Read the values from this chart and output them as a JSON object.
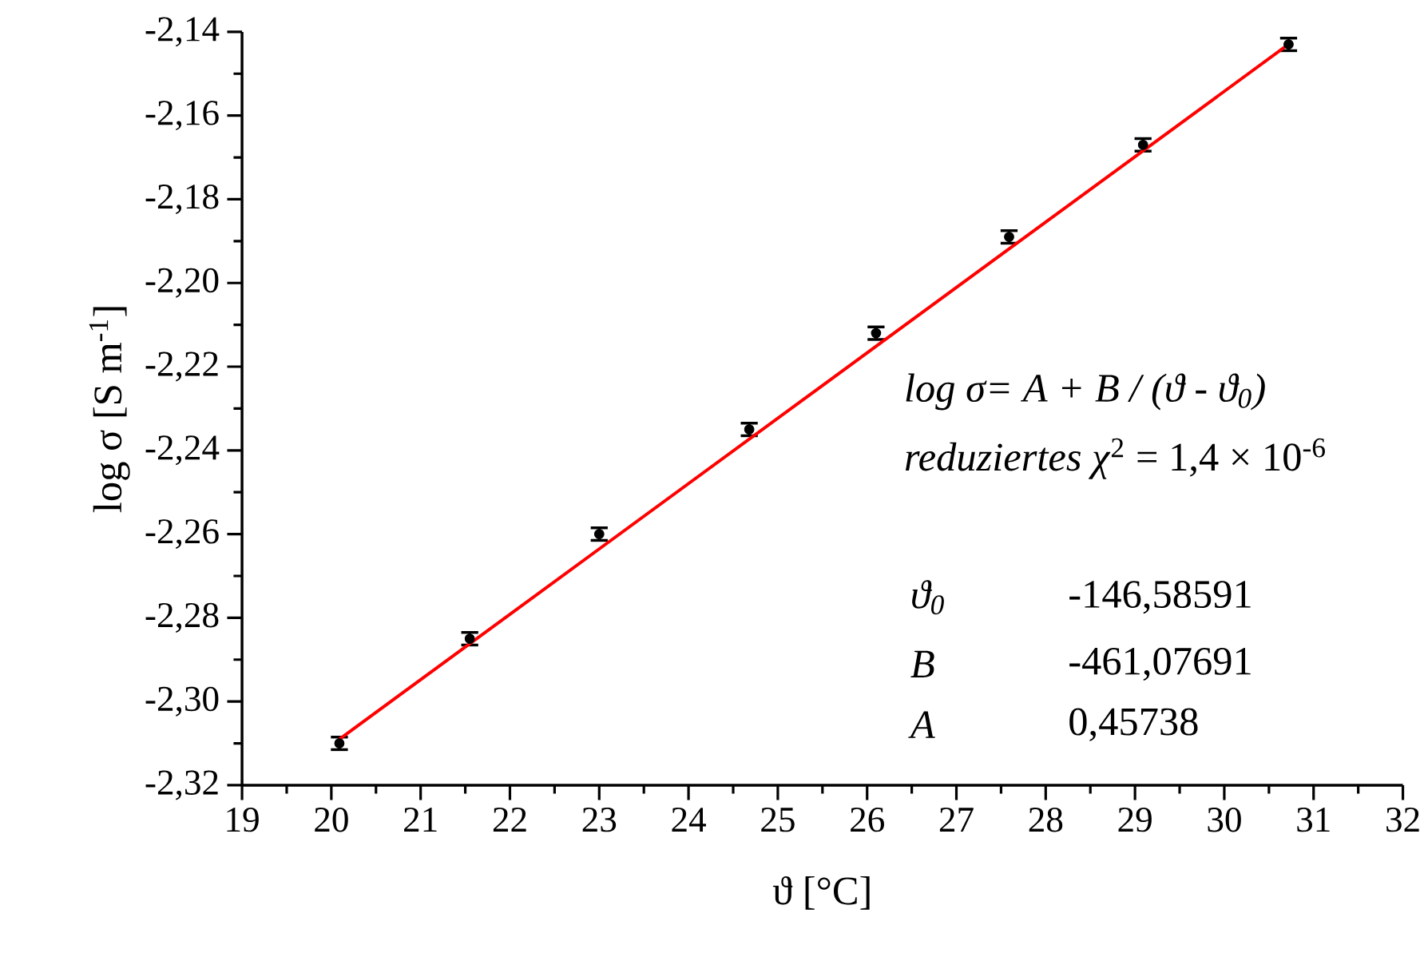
{
  "chart_data": {
    "type": "scatter",
    "xlabel": "ϑ [°C]",
    "ylabel": "log σ [S m$^{-1}$]",
    "xlim": [
      19,
      32
    ],
    "ylim": [
      -2.32,
      -2.14
    ],
    "xticks": [
      19,
      20,
      21,
      22,
      23,
      24,
      25,
      26,
      27,
      28,
      29,
      30,
      31,
      32
    ],
    "yticks": [
      {
        "value": -2.32,
        "label": "-2,32"
      },
      {
        "value": -2.3,
        "label": "-2,30"
      },
      {
        "value": -2.28,
        "label": "-2,28"
      },
      {
        "value": -2.26,
        "label": "-2,26"
      },
      {
        "value": -2.24,
        "label": "-2,24"
      },
      {
        "value": -2.22,
        "label": "-2,22"
      },
      {
        "value": -2.2,
        "label": "-2,20"
      },
      {
        "value": -2.18,
        "label": "-2,18"
      },
      {
        "value": -2.16,
        "label": "-2,16"
      },
      {
        "value": -2.14,
        "label": "-2,14"
      }
    ],
    "series": [
      {
        "color": "#000000",
        "x": [
          20.09,
          21.55,
          23.0,
          24.68,
          26.1,
          27.59,
          29.09,
          30.72
        ],
        "values": [
          -2.31,
          -2.285,
          -2.26,
          -2.235,
          -2.212,
          -2.189,
          -2.167,
          -2.143
        ],
        "errors": [
          0.0015,
          0.0015,
          0.0015,
          0.0015,
          0.0015,
          0.0015,
          0.0015,
          0.0015
        ]
      },
      {
        "type": "line",
        "color": "#ff0000",
        "x": [
          20.09,
          30.75
        ],
        "values": [
          -2.309,
          -2.1425
        ]
      }
    ],
    "annotations": [
      "log σ= A + B / (ϑ - ϑ$_{0}$)",
      "*reduziertes χ*$^{2}$ = 1,4 × 10$^{-6}$",
      "ϑ$_{0}$",
      "-146,58591",
      "B",
      "-461,07691",
      "A",
      "0,45738"
    ]
  }
}
